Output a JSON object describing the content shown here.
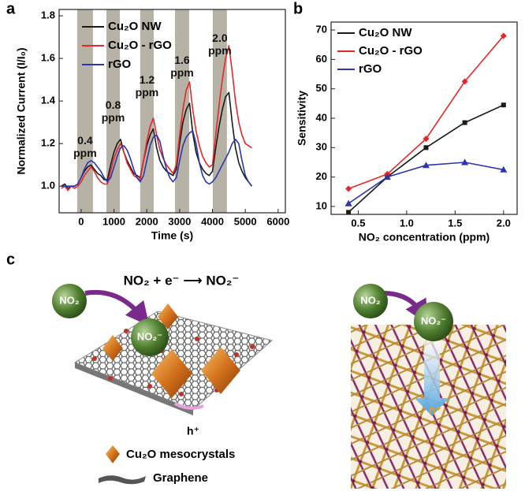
{
  "panels": [
    "a",
    "b",
    "c"
  ],
  "chart_data": [
    {
      "type": "line",
      "xlabel": "Time (s)",
      "ylabel": "Normalized Current (I/I₀)",
      "xlim": [
        -670,
        6220
      ],
      "ylim": [
        0.875,
        1.83
      ],
      "xticks": [
        0,
        1000,
        2000,
        3000,
        4000,
        5000,
        6000
      ],
      "yticks": [
        {
          "value": 1.0,
          "label": "1.0"
        },
        {
          "value": 1.2,
          "label": "1.2"
        },
        {
          "value": 1.4,
          "label": "1.4"
        },
        {
          "value": 1.6,
          "label": "1.6"
        },
        {
          "value": 1.8,
          "label": "1.8"
        }
      ],
      "legend": "upper left",
      "grid": false,
      "shaded_intervals": [
        [
          -120,
          360
        ],
        [
          770,
          1180
        ],
        [
          1800,
          2210
        ],
        [
          2860,
          3290
        ],
        [
          4010,
          4440
        ]
      ],
      "shade_color": "#a9a697",
      "annotations": [
        "0.4 ppm",
        "0.8 ppm",
        "1.2 ppm",
        "1.6 ppm",
        "2.0 ppm"
      ],
      "x": [
        -600,
        -500,
        -400,
        -300,
        -200,
        -100,
        0,
        100,
        200,
        300,
        400,
        500,
        600,
        700,
        800,
        900,
        1000,
        1100,
        1200,
        1300,
        1400,
        1500,
        1600,
        1700,
        1800,
        1900,
        2000,
        2100,
        2200,
        2300,
        2400,
        2500,
        2600,
        2700,
        2800,
        2900,
        3000,
        3100,
        3200,
        3300,
        3400,
        3500,
        3600,
        3700,
        3800,
        3900,
        4000,
        4100,
        4200,
        4300,
        4400,
        4500,
        4600,
        4700,
        4800,
        4900,
        5000,
        5100,
        5200
      ],
      "series": [
        {
          "name": "Cu₂O NW",
          "color": "#1a1a1a",
          "values": [
            1.0,
            1.01,
            0.99,
            1.0,
            1.0,
            1.01,
            1.04,
            1.07,
            1.09,
            1.1,
            1.08,
            1.06,
            1.05,
            1.03,
            1.03,
            1.1,
            1.16,
            1.2,
            1.22,
            1.16,
            1.12,
            1.09,
            1.06,
            1.05,
            1.04,
            1.12,
            1.19,
            1.24,
            1.27,
            1.18,
            1.12,
            1.09,
            1.07,
            1.06,
            1.05,
            1.08,
            1.2,
            1.3,
            1.36,
            1.39,
            1.25,
            1.16,
            1.11,
            1.08,
            1.06,
            1.05,
            1.07,
            1.18,
            1.28,
            1.36,
            1.42,
            1.44,
            1.3,
            1.18,
            1.11,
            1.07,
            1.04,
            1.02,
            1.0
          ]
        },
        {
          "name": "Cu₂O - rGO",
          "color": "#e8262a",
          "values": [
            0.99,
            1.0,
            0.98,
            1.0,
            0.99,
            1.0,
            1.02,
            1.05,
            1.07,
            1.09,
            1.07,
            1.04,
            1.02,
            1.01,
            1.01,
            1.07,
            1.13,
            1.17,
            1.2,
            1.16,
            1.11,
            1.08,
            1.05,
            1.04,
            1.03,
            1.12,
            1.21,
            1.28,
            1.32,
            1.24,
            1.17,
            1.13,
            1.1,
            1.08,
            1.06,
            1.1,
            1.24,
            1.36,
            1.45,
            1.49,
            1.36,
            1.26,
            1.19,
            1.14,
            1.11,
            1.09,
            1.1,
            1.24,
            1.38,
            1.5,
            1.6,
            1.66,
            1.54,
            1.4,
            1.3,
            1.24,
            1.2,
            1.19,
            1.18
          ]
        },
        {
          "name": "rGO",
          "color": "#2b35b0",
          "values": [
            1.0,
            1.0,
            1.0,
            1.0,
            1.0,
            1.01,
            1.04,
            1.08,
            1.11,
            1.12,
            1.11,
            1.09,
            1.07,
            1.04,
            1.02,
            1.04,
            1.09,
            1.14,
            1.18,
            1.19,
            1.17,
            1.13,
            1.08,
            1.04,
            1.02,
            1.05,
            1.12,
            1.19,
            1.23,
            1.24,
            1.21,
            1.14,
            1.08,
            1.04,
            1.02,
            1.04,
            1.12,
            1.19,
            1.23,
            1.25,
            1.26,
            1.2,
            1.11,
            1.05,
            1.02,
            1.01,
            1.02,
            1.04,
            1.07,
            1.1,
            1.13,
            1.16,
            1.2,
            1.22,
            1.2,
            1.12,
            1.05,
            1.02,
            1.0
          ]
        }
      ]
    },
    {
      "type": "line",
      "xlabel": "NO₂ concentration (ppm)",
      "ylabel": "Sensitivity",
      "xlim": [
        0.22,
        2.14
      ],
      "ylim": [
        7.3,
        72.7
      ],
      "xticks": [
        0.5,
        {
          "value": 1.0,
          "label": "1.0"
        },
        1.5,
        {
          "value": 2.0,
          "label": "2.0"
        }
      ],
      "yticks": [
        10,
        20,
        30,
        40,
        50,
        60,
        70
      ],
      "legend": "upper left",
      "grid": false,
      "x": [
        0.4,
        0.8,
        1.2,
        1.6,
        2.0
      ],
      "series": [
        {
          "name": "Cu₂O NW",
          "color": "#1a1a1a",
          "marker": "square",
          "values": [
            8,
            20,
            30,
            38.5,
            44.5
          ]
        },
        {
          "name": "Cu₂O - rGO",
          "color": "#e8262a",
          "marker": "diamond",
          "values": [
            16,
            21,
            33,
            52.5,
            68
          ]
        },
        {
          "name": "rGO",
          "color": "#2b35b0",
          "marker": "triangle",
          "values": [
            11,
            20,
            24,
            25,
            22.5
          ]
        }
      ]
    }
  ],
  "diagram": {
    "equation": "NO₂ + e⁻ ⟶ NO₂⁻",
    "left": {
      "molecule": "NO₂",
      "ion": "NO₂⁻",
      "hole": "h⁺"
    },
    "legend": [
      "Cu₂O mesocrystals",
      "Graphene"
    ],
    "right": {
      "molecule": "NO₂",
      "ion": "NO₂⁻",
      "hole": "h⁺"
    }
  }
}
